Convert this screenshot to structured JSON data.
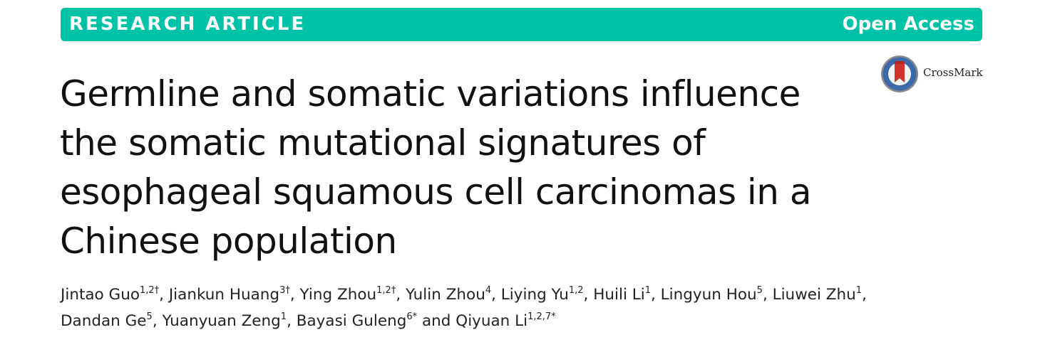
{
  "banner": {
    "label": "RESEARCH ARTICLE",
    "access": "Open Access",
    "color": "#00c2a6"
  },
  "crossmark": {
    "label": "CrossMark",
    "icon": "crossmark-icon"
  },
  "title": {
    "lines": [
      "Germline and somatic variations influence",
      "the somatic mutational signatures of",
      "esophageal squamous cell carcinomas in a",
      "Chinese population"
    ]
  },
  "authors": [
    {
      "name": "Jintao Guo",
      "sup": "1,2†",
      "sep": ", "
    },
    {
      "name": "Jiankun Huang",
      "sup": "3†",
      "sep": ", "
    },
    {
      "name": "Ying Zhou",
      "sup": "1,2†",
      "sep": ", "
    },
    {
      "name": "Yulin Zhou",
      "sup": "4",
      "sep": ", "
    },
    {
      "name": "Liying Yu",
      "sup": "1,2",
      "sep": ", "
    },
    {
      "name": "Huili Li",
      "sup": "1",
      "sep": ", "
    },
    {
      "name": "Lingyun Hou",
      "sup": "5",
      "sep": ", "
    },
    {
      "name": "Liuwei Zhu",
      "sup": "1",
      "sep": ","
    },
    {
      "name": "Dandan Ge",
      "sup": "5",
      "sep": ", "
    },
    {
      "name": "Yuanyuan Zeng",
      "sup": "1",
      "sep": ", "
    },
    {
      "name": "Bayasi Guleng",
      "sup": "6*",
      "sep": " and "
    },
    {
      "name": "Qiyuan Li",
      "sup": "1,2,7*",
      "sep": ""
    }
  ]
}
